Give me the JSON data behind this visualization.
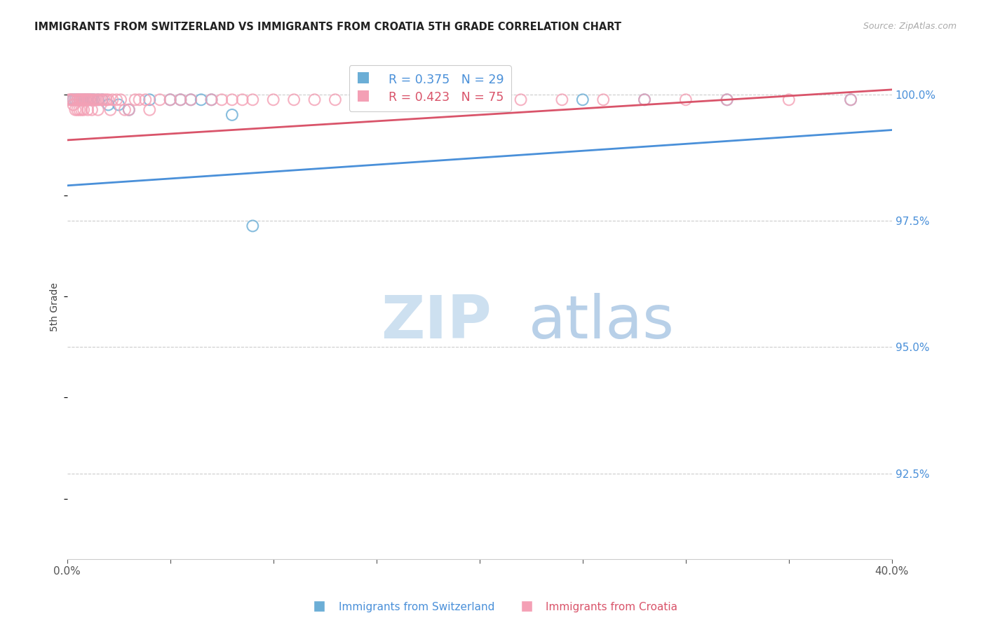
{
  "title": "IMMIGRANTS FROM SWITZERLAND VS IMMIGRANTS FROM CROATIA 5TH GRADE CORRELATION CHART",
  "source": "Source: ZipAtlas.com",
  "ylabel": "5th Grade",
  "yaxis_values": [
    1.0,
    0.975,
    0.95,
    0.925
  ],
  "xaxis_min": 0.0,
  "xaxis_max": 0.4,
  "yaxis_min": 0.908,
  "yaxis_max": 1.008,
  "legend_blue_r": "0.375",
  "legend_blue_n": "29",
  "legend_pink_r": "0.423",
  "legend_pink_n": "75",
  "legend_blue_label": "Immigrants from Switzerland",
  "legend_pink_label": "Immigrants from Croatia",
  "blue_color": "#6baed6",
  "pink_color": "#f4a0b5",
  "trendline_blue": "#4a90d9",
  "trendline_pink": "#d9546a",
  "background_color": "#ffffff",
  "grid_color": "#cccccc",
  "title_color": "#222222",
  "source_color": "#aaaaaa",
  "axis_label_color": "#4a90d9",
  "watermark_zip_color": "#c8dff0",
  "watermark_atlas_color": "#b0c8e0",
  "blue_scatter_x": [
    0.002,
    0.003,
    0.004,
    0.005,
    0.006,
    0.007,
    0.008,
    0.009,
    0.01,
    0.011,
    0.012,
    0.013,
    0.015,
    0.017,
    0.02,
    0.025,
    0.03,
    0.04,
    0.05,
    0.055,
    0.06,
    0.065,
    0.07,
    0.08,
    0.09,
    0.25,
    0.28,
    0.32,
    0.38
  ],
  "blue_scatter_y": [
    0.999,
    0.999,
    0.999,
    0.999,
    0.999,
    0.999,
    0.999,
    0.999,
    0.999,
    0.999,
    0.999,
    0.999,
    0.999,
    0.999,
    0.998,
    0.998,
    0.997,
    0.999,
    0.999,
    0.999,
    0.999,
    0.999,
    0.999,
    0.996,
    0.974,
    0.999,
    0.999,
    0.999,
    0.999
  ],
  "pink_scatter_x": [
    0.001,
    0.002,
    0.002,
    0.003,
    0.003,
    0.004,
    0.004,
    0.005,
    0.005,
    0.005,
    0.006,
    0.006,
    0.006,
    0.007,
    0.007,
    0.007,
    0.008,
    0.008,
    0.008,
    0.009,
    0.009,
    0.01,
    0.01,
    0.01,
    0.011,
    0.011,
    0.012,
    0.012,
    0.013,
    0.014,
    0.015,
    0.015,
    0.016,
    0.017,
    0.018,
    0.019,
    0.02,
    0.021,
    0.022,
    0.024,
    0.026,
    0.028,
    0.03,
    0.033,
    0.035,
    0.038,
    0.04,
    0.045,
    0.05,
    0.055,
    0.06,
    0.07,
    0.075,
    0.08,
    0.085,
    0.09,
    0.1,
    0.11,
    0.12,
    0.13,
    0.14,
    0.15,
    0.16,
    0.17,
    0.18,
    0.19,
    0.2,
    0.22,
    0.24,
    0.26,
    0.28,
    0.3,
    0.32,
    0.35,
    0.38
  ],
  "pink_scatter_y": [
    0.999,
    0.999,
    0.999,
    0.999,
    0.998,
    0.999,
    0.997,
    0.999,
    0.999,
    0.997,
    0.999,
    0.999,
    0.997,
    0.999,
    0.999,
    0.997,
    0.999,
    0.999,
    0.997,
    0.999,
    0.999,
    0.999,
    0.999,
    0.997,
    0.999,
    0.999,
    0.999,
    0.997,
    0.999,
    0.999,
    0.999,
    0.997,
    0.999,
    0.999,
    0.999,
    0.999,
    0.999,
    0.997,
    0.999,
    0.999,
    0.999,
    0.997,
    0.997,
    0.999,
    0.999,
    0.999,
    0.997,
    0.999,
    0.999,
    0.999,
    0.999,
    0.999,
    0.999,
    0.999,
    0.999,
    0.999,
    0.999,
    0.999,
    0.999,
    0.999,
    0.999,
    0.999,
    0.999,
    0.999,
    0.999,
    0.999,
    0.999,
    0.999,
    0.999,
    0.999,
    0.999,
    0.999,
    0.999,
    0.999,
    0.999
  ],
  "blue_trendline_x": [
    0.0,
    0.4
  ],
  "blue_trendline_y": [
    0.982,
    0.993
  ],
  "pink_trendline_x": [
    0.0,
    0.4
  ],
  "pink_trendline_y": [
    0.991,
    1.001
  ]
}
